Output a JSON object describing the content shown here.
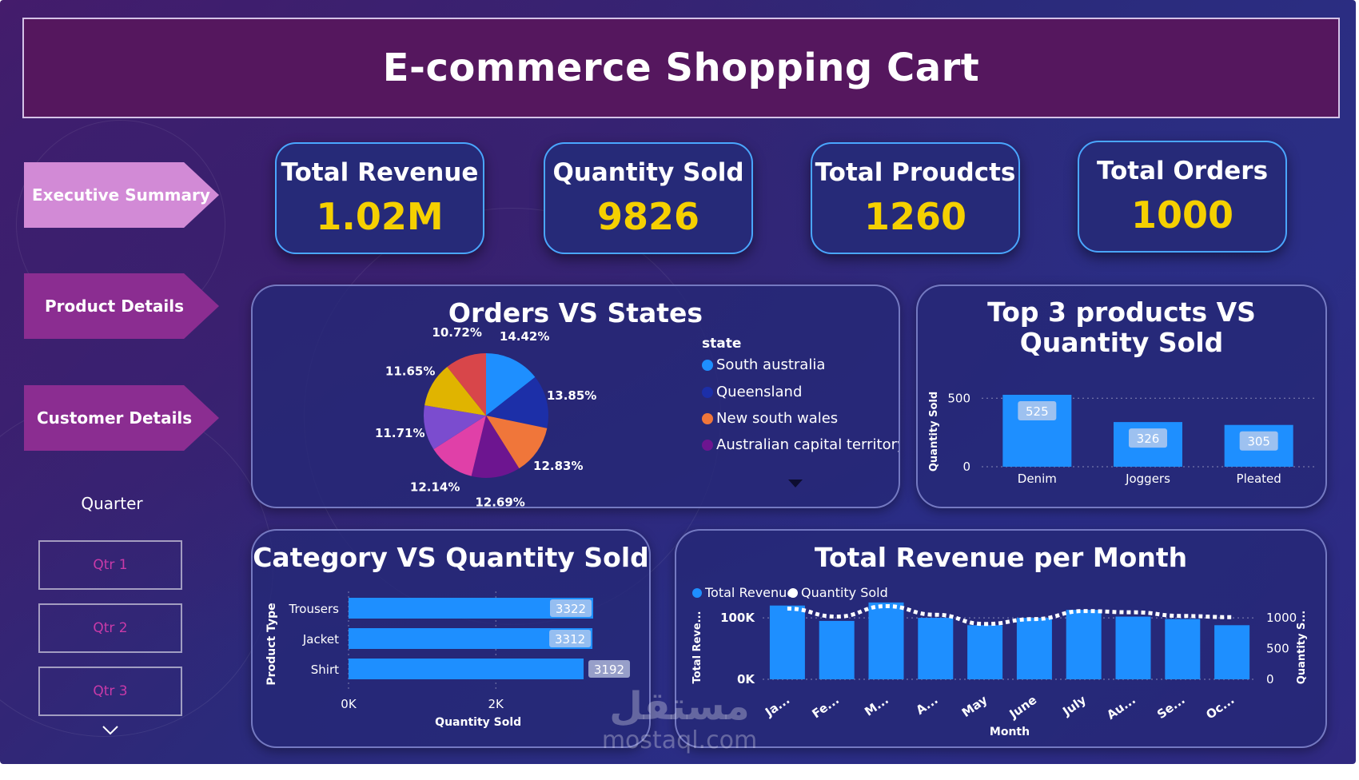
{
  "dashboard_title": "E-commerce Shopping Cart",
  "colors": {
    "kpi_value": "#f5d000",
    "nav_active": "#d28ad6",
    "nav_inactive": "#8b2d91",
    "bar": "#1e8fff",
    "title_bg": "#55175e"
  },
  "nav": {
    "items": [
      {
        "label": "Executive Summary",
        "active": true
      },
      {
        "label": "Product Details",
        "active": false
      },
      {
        "label": "Customer Details",
        "active": false
      }
    ]
  },
  "slicer": {
    "title": "Quarter",
    "options": [
      "Qtr 1",
      "Qtr 2",
      "Qtr 3"
    ],
    "icon": "chevron-down-icon"
  },
  "kpis": [
    {
      "label": "Total Revenue",
      "value": "1.02M"
    },
    {
      "label": "Quantity Sold",
      "value": "9826"
    },
    {
      "label": "Total Proudcts",
      "value": "1260"
    },
    {
      "label": "Total Orders",
      "value": "1000"
    }
  ],
  "watermark": {
    "arabic": "مستقل",
    "latin": "mostaql.com"
  },
  "chart_data": [
    {
      "type": "pie",
      "title": "Orders VS States",
      "legend_title": "state",
      "legend": [
        {
          "name": "South australia",
          "color": "#1e8fff"
        },
        {
          "name": "Queensland",
          "color": "#1c2fa8"
        },
        {
          "name": "New south wales",
          "color": "#f0763a"
        },
        {
          "name": "Australian capital territory",
          "color": "#6d1590"
        }
      ],
      "slices": [
        {
          "label": "14.42%",
          "value": 14.42,
          "color": "#1e8fff"
        },
        {
          "label": "13.85%",
          "value": 13.85,
          "color": "#1c2fa8"
        },
        {
          "label": "12.83%",
          "value": 12.83,
          "color": "#f0763a"
        },
        {
          "label": "12.69%",
          "value": 12.69,
          "color": "#6d1590"
        },
        {
          "label": "12.14%",
          "value": 12.14,
          "color": "#e040a8"
        },
        {
          "label": "11.71%",
          "value": 11.71,
          "color": "#7b4ccf"
        },
        {
          "label": "11.65%",
          "value": 11.65,
          "color": "#e0b400"
        },
        {
          "label": "10.72%",
          "value": 10.72,
          "color": "#d8464a"
        }
      ]
    },
    {
      "type": "bar",
      "title": "Top 3 products VS Quantity Sold",
      "ylabel": "Quantity Sold",
      "categories": [
        "Denim",
        "Joggers",
        "Pleated"
      ],
      "values": [
        525,
        326,
        305
      ],
      "yticks": [
        "0",
        "500"
      ],
      "ylim": [
        0,
        525
      ]
    },
    {
      "type": "bar",
      "orientation": "horizontal",
      "title": "Category VS Quantity Sold",
      "ylabel": "Product Type",
      "xlabel": "Quantity Sold",
      "categories": [
        "Trousers",
        "Jacket",
        "Shirt"
      ],
      "values": [
        3322,
        3312,
        3192
      ],
      "xticks": [
        "0K",
        "2K"
      ],
      "xlim": [
        0,
        3322
      ]
    },
    {
      "type": "bar",
      "title": "Total Revenue per Month",
      "xlabel": "Month",
      "ylabel": "Total Reve...",
      "y2label": "Quantity S...",
      "legend": [
        {
          "name": "Total Revenue",
          "color": "#1e8fff"
        },
        {
          "name": "Quantity Sold",
          "color": "#ffffff"
        }
      ],
      "categories": [
        "Ja...",
        "Fe...",
        "M...",
        "A...",
        "May",
        "June",
        "July",
        "Au...",
        "Se...",
        "Oc..."
      ],
      "series": [
        {
          "name": "Total Revenue",
          "values": [
            120000,
            95000,
            125000,
            100000,
            88000,
            100000,
            113000,
            102000,
            98000,
            88000
          ]
        },
        {
          "name": "Quantity Sold",
          "values": [
            1150,
            1020,
            1190,
            1050,
            900,
            980,
            1110,
            1090,
            1030,
            1010
          ]
        }
      ],
      "yticks": [
        "0K",
        "100K"
      ],
      "y2ticks": [
        "0",
        "500",
        "1000"
      ],
      "ylim": [
        0,
        130000
      ],
      "y2lim": [
        0,
        1300
      ]
    }
  ]
}
